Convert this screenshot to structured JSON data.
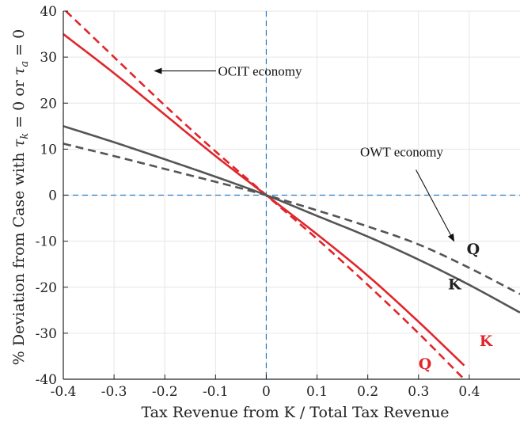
{
  "chart_data": {
    "type": "line",
    "xlabel": "Tax Revenue from K / Total Tax Revenue",
    "ylabel": "% Deviation from Case with τ_k = 0 or τ_a = 0",
    "ylabel_parts": {
      "prefix": "% Deviation from Case with ",
      "var1": "τ",
      "sub1": "k",
      "middle": " = 0 or ",
      "var2": "τ",
      "sub2": "a",
      "suffix": " = 0"
    },
    "xlim": [
      -0.4,
      0.5
    ],
    "ylim": [
      -40,
      40
    ],
    "xticks": [
      -0.4,
      -0.3,
      -0.2,
      -0.1,
      0,
      0.1,
      0.2,
      0.3,
      0.4
    ],
    "xtick_labels": [
      "-0.4",
      "-0.3",
      "-0.2",
      "-0.1",
      "0",
      "0.1",
      "0.2",
      "0.3",
      "0.4"
    ],
    "yticks": [
      -40,
      -30,
      -20,
      -10,
      0,
      10,
      20,
      30,
      40
    ],
    "ytick_labels": [
      "-40",
      "-30",
      "-20",
      "-10",
      "0",
      "10",
      "20",
      "30",
      "40"
    ],
    "grid": true,
    "reference_lines": {
      "x": 0,
      "y": 0,
      "color": "#2b7bbf",
      "style": "dashed"
    },
    "colors": {
      "ocit": "#e0262b",
      "owt": "#555555"
    },
    "series": [
      {
        "id": "ocit-k",
        "economy": "OCIT",
        "color": "#e0262b",
        "dash": false,
        "x": [
          -0.4,
          -0.3,
          -0.2,
          -0.1,
          0.0,
          0.1,
          0.2,
          0.3,
          0.39
        ],
        "y": [
          35,
          26.5,
          17.5,
          8.5,
          0.0,
          -8.5,
          -17.5,
          -27.5,
          -37
        ]
      },
      {
        "id": "ocit-q",
        "economy": "OCIT",
        "color": "#e0262b",
        "dash": true,
        "x": [
          -0.395,
          -0.3,
          -0.2,
          -0.1,
          0.0,
          0.1,
          0.2,
          0.3,
          0.39
        ],
        "y": [
          40,
          30,
          19.5,
          9.5,
          0.0,
          -9.5,
          -19.5,
          -30,
          -40
        ]
      },
      {
        "id": "owt-k",
        "economy": "OWT",
        "color": "#555555",
        "dash": false,
        "x": [
          -0.4,
          -0.3,
          -0.2,
          -0.1,
          0.0,
          0.1,
          0.2,
          0.3,
          0.4,
          0.5
        ],
        "y": [
          15,
          11.5,
          7.8,
          4.0,
          0.0,
          -4.5,
          -9.0,
          -14.0,
          -19.5,
          -25.5
        ]
      },
      {
        "id": "owt-q",
        "economy": "OWT",
        "color": "#555555",
        "dash": true,
        "x": [
          -0.4,
          -0.3,
          -0.2,
          -0.1,
          0.0,
          0.1,
          0.2,
          0.3,
          0.4,
          0.5
        ],
        "y": [
          11.2,
          8.5,
          5.7,
          2.9,
          0.0,
          -3.3,
          -6.8,
          -10.7,
          -15.8,
          -21.5
        ]
      }
    ],
    "annotations": [
      {
        "id": "ocit-annotation",
        "text": "OCIT economy",
        "x": -0.095,
        "y": 27,
        "arrow_to": [
          -0.22,
          27
        ]
      },
      {
        "id": "owt-annotation",
        "text": "OWT economy",
        "x": 0.185,
        "y": 9.5,
        "arrow_from": [
          0.295,
          5.5
        ],
        "arrow_to": [
          0.37,
          -10
        ]
      }
    ],
    "series_labels": [
      {
        "id": "label-owt-q",
        "text": "Q",
        "x": 0.395,
        "y": -12.8,
        "color": "#222222"
      },
      {
        "id": "label-owt-k",
        "text": "K",
        "x": 0.358,
        "y": -20.5,
        "color": "#222222"
      },
      {
        "id": "label-ocit-k",
        "text": "K",
        "x": 0.42,
        "y": -32.8,
        "color": "#e0262b"
      },
      {
        "id": "label-ocit-q",
        "text": "Q",
        "x": 0.3,
        "y": -37.8,
        "color": "#e0262b"
      }
    ]
  }
}
